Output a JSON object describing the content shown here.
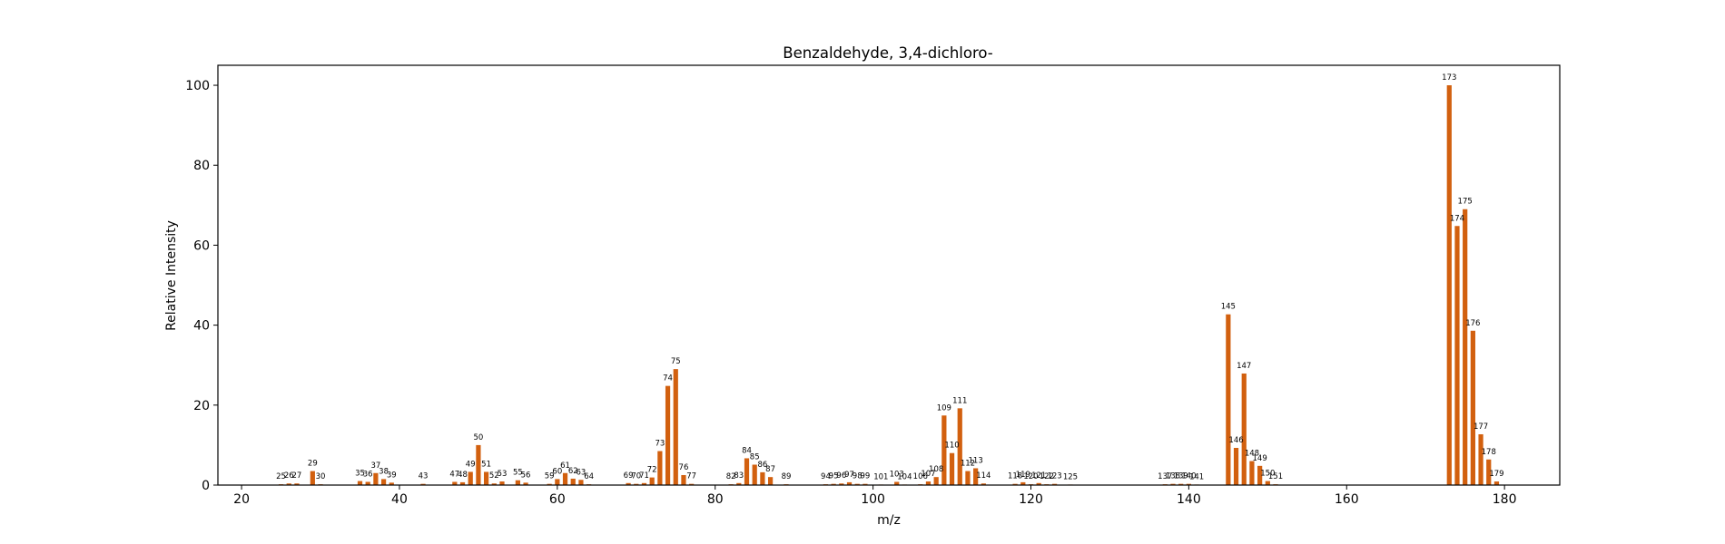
{
  "chart_data": {
    "type": "bar",
    "title": "Benzaldehyde, 3,4-dichloro-",
    "xlabel": "m/z",
    "ylabel": "Relative Intensity",
    "xlim": [
      17,
      187
    ],
    "ylim": [
      0,
      105
    ],
    "xticks": [
      20,
      40,
      60,
      80,
      100,
      120,
      140,
      160,
      180
    ],
    "yticks": [
      0,
      20,
      40,
      60,
      80,
      100
    ],
    "grid": false,
    "bar_color": "#d2600f",
    "series": [
      {
        "points": [
          {
            "x": 25,
            "y": 0.2
          },
          {
            "x": 26,
            "y": 0.4
          },
          {
            "x": 27,
            "y": 0.4
          },
          {
            "x": 29,
            "y": 3.5
          },
          {
            "x": 30,
            "y": 0.2
          },
          {
            "x": 35,
            "y": 1.0
          },
          {
            "x": 36,
            "y": 0.8
          },
          {
            "x": 37,
            "y": 3.0
          },
          {
            "x": 38,
            "y": 1.5
          },
          {
            "x": 39,
            "y": 0.6
          },
          {
            "x": 43,
            "y": 0.3
          },
          {
            "x": 47,
            "y": 0.8
          },
          {
            "x": 48,
            "y": 0.7
          },
          {
            "x": 49,
            "y": 3.3
          },
          {
            "x": 50,
            "y": 10.0
          },
          {
            "x": 51,
            "y": 3.3
          },
          {
            "x": 52,
            "y": 0.4
          },
          {
            "x": 53,
            "y": 0.9
          },
          {
            "x": 55,
            "y": 1.2
          },
          {
            "x": 56,
            "y": 0.6
          },
          {
            "x": 59,
            "y": 0.3
          },
          {
            "x": 60,
            "y": 1.5
          },
          {
            "x": 61,
            "y": 3.0
          },
          {
            "x": 62,
            "y": 1.6
          },
          {
            "x": 63,
            "y": 1.3
          },
          {
            "x": 64,
            "y": 0.2
          },
          {
            "x": 69,
            "y": 0.5
          },
          {
            "x": 70,
            "y": 0.3
          },
          {
            "x": 71,
            "y": 0.5
          },
          {
            "x": 72,
            "y": 1.9
          },
          {
            "x": 73,
            "y": 8.5
          },
          {
            "x": 74,
            "y": 24.8
          },
          {
            "x": 75,
            "y": 29.0
          },
          {
            "x": 76,
            "y": 2.5
          },
          {
            "x": 77,
            "y": 0.3
          },
          {
            "x": 82,
            "y": 0.2
          },
          {
            "x": 83,
            "y": 0.5
          },
          {
            "x": 84,
            "y": 6.7
          },
          {
            "x": 85,
            "y": 5.1
          },
          {
            "x": 86,
            "y": 3.2
          },
          {
            "x": 87,
            "y": 2.0
          },
          {
            "x": 89,
            "y": 0.2
          },
          {
            "x": 94,
            "y": 0.2
          },
          {
            "x": 95,
            "y": 0.3
          },
          {
            "x": 96,
            "y": 0.4
          },
          {
            "x": 97,
            "y": 0.7
          },
          {
            "x": 98,
            "y": 0.3
          },
          {
            "x": 99,
            "y": 0.3
          },
          {
            "x": 101,
            "y": 0.1
          },
          {
            "x": 103,
            "y": 0.8
          },
          {
            "x": 104,
            "y": 0.1
          },
          {
            "x": 106,
            "y": 0.2
          },
          {
            "x": 107,
            "y": 0.9
          },
          {
            "x": 108,
            "y": 2.0
          },
          {
            "x": 109,
            "y": 17.4
          },
          {
            "x": 110,
            "y": 8.0
          },
          {
            "x": 111,
            "y": 19.2
          },
          {
            "x": 112,
            "y": 3.5
          },
          {
            "x": 113,
            "y": 4.2
          },
          {
            "x": 114,
            "y": 0.4
          },
          {
            "x": 118,
            "y": 0.3
          },
          {
            "x": 119,
            "y": 0.7
          },
          {
            "x": 120,
            "y": 0.2
          },
          {
            "x": 121,
            "y": 0.5
          },
          {
            "x": 122,
            "y": 0.2
          },
          {
            "x": 123,
            "y": 0.3
          },
          {
            "x": 125,
            "y": 0.1
          },
          {
            "x": 137,
            "y": 0.2
          },
          {
            "x": 138,
            "y": 0.3
          },
          {
            "x": 139,
            "y": 0.3
          },
          {
            "x": 140,
            "y": 0.3
          },
          {
            "x": 141,
            "y": 0.1
          },
          {
            "x": 145,
            "y": 42.7
          },
          {
            "x": 146,
            "y": 9.3
          },
          {
            "x": 147,
            "y": 27.9
          },
          {
            "x": 148,
            "y": 6.0
          },
          {
            "x": 149,
            "y": 4.8
          },
          {
            "x": 150,
            "y": 1.0
          },
          {
            "x": 151,
            "y": 0.2
          },
          {
            "x": 173,
            "y": 100.0
          },
          {
            "x": 174,
            "y": 64.8
          },
          {
            "x": 175,
            "y": 69.0
          },
          {
            "x": 176,
            "y": 38.6
          },
          {
            "x": 177,
            "y": 12.7
          },
          {
            "x": 178,
            "y": 6.4
          },
          {
            "x": 179,
            "y": 0.9
          }
        ]
      }
    ]
  }
}
